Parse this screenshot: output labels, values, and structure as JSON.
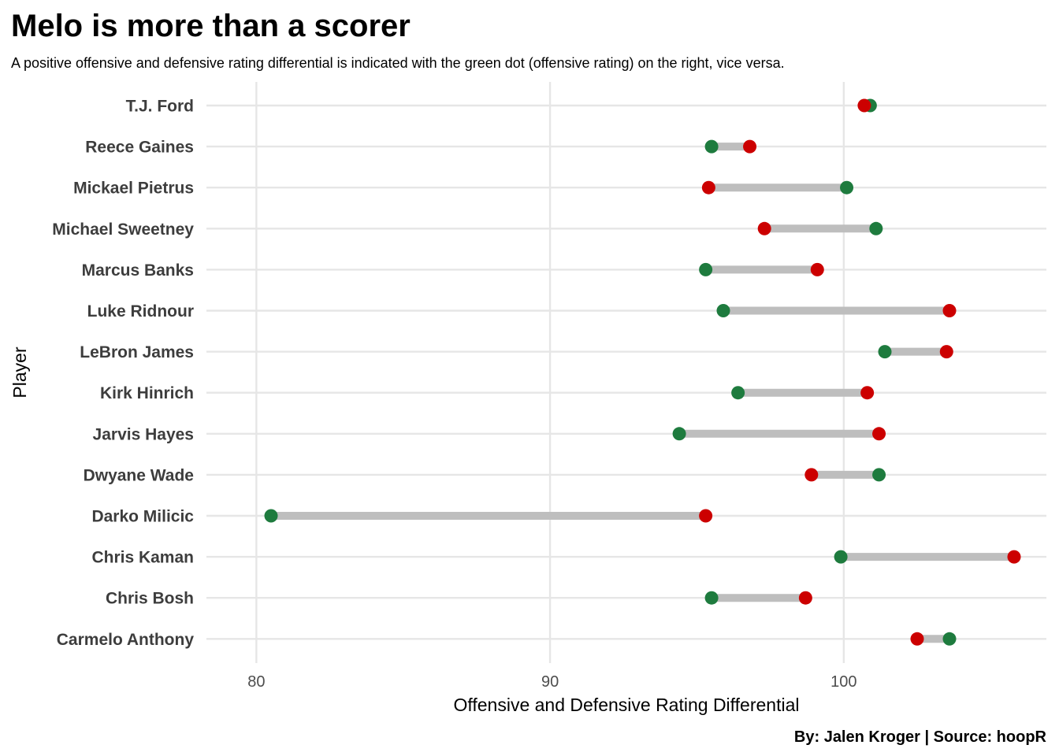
{
  "chart_data": {
    "type": "dumbbell",
    "title": "Melo is more than a scorer",
    "subtitle": "A positive offensive and defensive rating differential is indicated with the green dot (offensive rating) on the right, vice versa.",
    "xlabel": "Offensive and Defensive Rating Differential",
    "ylabel": "Player",
    "caption": "By: Jalen Kroger | Source: hoopR",
    "xlim": [
      78.3,
      106.9
    ],
    "xticks": [
      80,
      90,
      100
    ],
    "grid": true,
    "legend": "none",
    "colors": {
      "offensive": "#1e7b3e",
      "defensive": "#cc0000",
      "segment": "#bebebe",
      "grid": "#e6e6e6"
    },
    "series": [
      {
        "key": "offensive",
        "description": "green dot (offensive rating)"
      },
      {
        "key": "defensive",
        "description": "red dot"
      }
    ],
    "players": [
      {
        "name": "T.J. Ford",
        "offensive": 100.9,
        "defensive": 100.7
      },
      {
        "name": "Reece Gaines",
        "offensive": 95.5,
        "defensive": 96.8
      },
      {
        "name": "Mickael Pietrus",
        "offensive": 100.1,
        "defensive": 95.4
      },
      {
        "name": "Michael Sweetney",
        "offensive": 101.1,
        "defensive": 97.3
      },
      {
        "name": "Marcus Banks",
        "offensive": 95.3,
        "defensive": 99.1
      },
      {
        "name": "Luke Ridnour",
        "offensive": 95.9,
        "defensive": 103.6
      },
      {
        "name": "LeBron James",
        "offensive": 101.4,
        "defensive": 103.5
      },
      {
        "name": "Kirk Hinrich",
        "offensive": 96.4,
        "defensive": 100.8
      },
      {
        "name": "Jarvis Hayes",
        "offensive": 94.4,
        "defensive": 101.2
      },
      {
        "name": "Dwyane Wade",
        "offensive": 101.2,
        "defensive": 98.9
      },
      {
        "name": "Darko Milicic",
        "offensive": 80.5,
        "defensive": 95.3
      },
      {
        "name": "Chris Kaman",
        "offensive": 99.9,
        "defensive": 105.8
      },
      {
        "name": "Chris Bosh",
        "offensive": 95.5,
        "defensive": 98.7
      },
      {
        "name": "Carmelo Anthony",
        "offensive": 103.6,
        "defensive": 102.5
      }
    ]
  }
}
